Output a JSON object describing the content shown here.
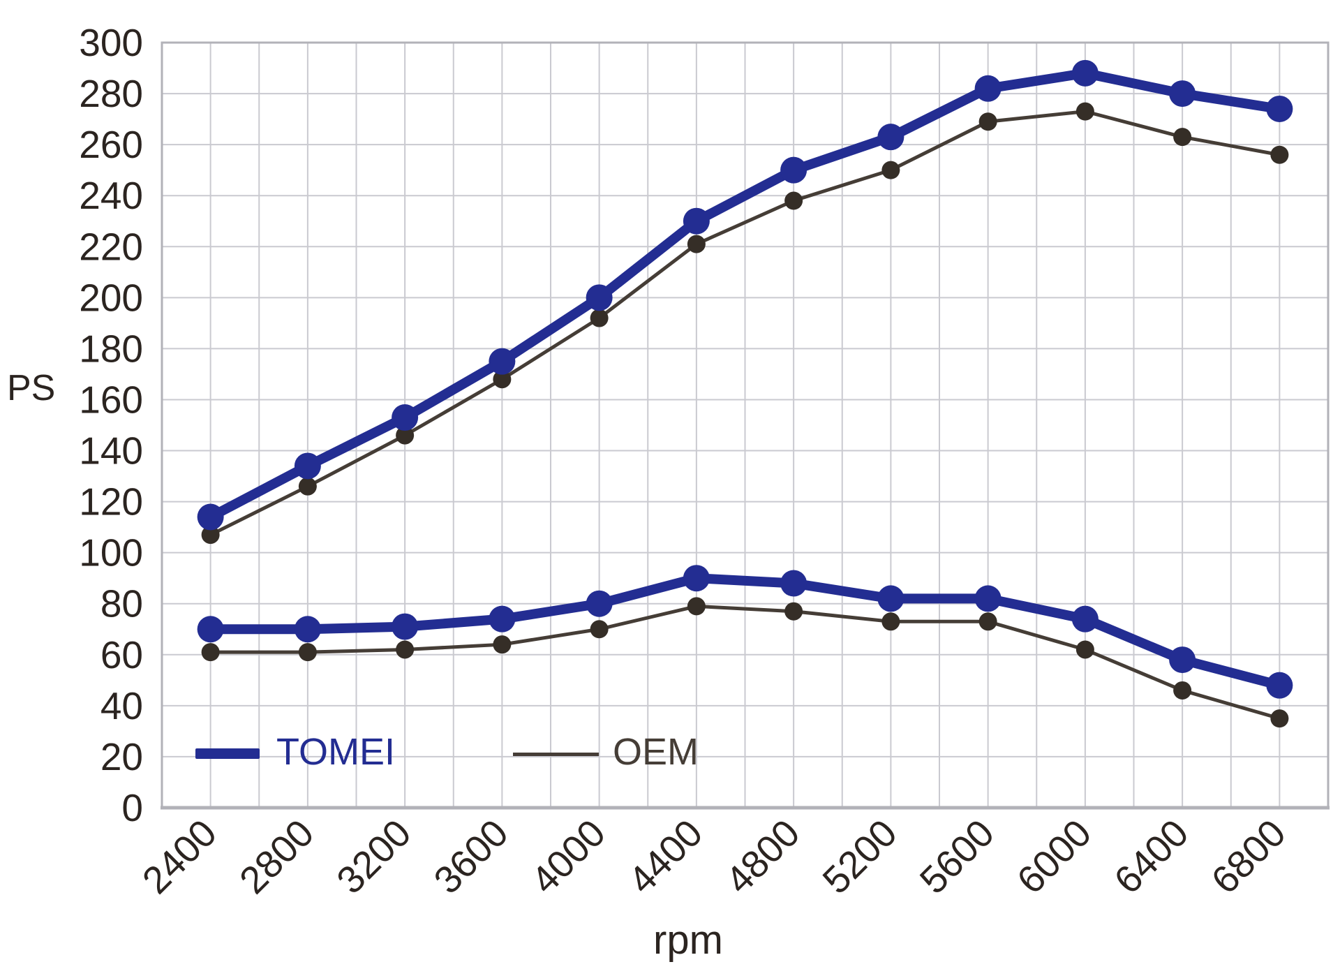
{
  "chart_data": {
    "type": "line",
    "title": "",
    "ylabel": "PS",
    "xlabel": "rpm",
    "x": [
      2400,
      2800,
      3200,
      3600,
      4000,
      4400,
      4800,
      5200,
      5600,
      6000,
      6400,
      6800
    ],
    "x_tick_labels": [
      "2400",
      "2800",
      "3200",
      "3600",
      "4000",
      "4400",
      "4800",
      "5200",
      "5600",
      "6000",
      "6400",
      "6800"
    ],
    "x_range": [
      2200,
      7000
    ],
    "x_grid_step": 200,
    "ylim": [
      0,
      300
    ],
    "y_ticks": [
      0,
      20,
      40,
      60,
      80,
      100,
      120,
      140,
      160,
      180,
      200,
      220,
      240,
      260,
      280,
      300
    ],
    "grid": true,
    "legend_position": "inside-bottom-left",
    "legend": [
      {
        "label": "TOMEI",
        "color": "#232d92"
      },
      {
        "label": "OEM",
        "color": "#453d36"
      }
    ],
    "series": [
      {
        "name": "OEM",
        "curve": "power",
        "color": "#453d36",
        "dot_color": "#352e27",
        "line_width": 5,
        "dot_radius": 13,
        "values": [
          107,
          126,
          146,
          168,
          192,
          221,
          238,
          250,
          269,
          273,
          263,
          256
        ]
      },
      {
        "name": "TOMEI",
        "curve": "power",
        "color": "#232d92",
        "dot_color": "#232d92",
        "line_width": 14,
        "dot_radius": 19,
        "values": [
          114,
          134,
          153,
          175,
          200,
          230,
          250,
          263,
          282,
          288,
          280,
          274
        ]
      },
      {
        "name": "OEM",
        "curve": "torque",
        "color": "#453d36",
        "dot_color": "#352e27",
        "line_width": 5,
        "dot_radius": 13,
        "values": [
          61,
          61,
          62,
          64,
          70,
          79,
          77,
          73,
          73,
          62,
          46,
          35
        ]
      },
      {
        "name": "TOMEI",
        "curve": "torque",
        "color": "#232d92",
        "dot_color": "#232d92",
        "line_width": 14,
        "dot_radius": 19,
        "values": [
          70,
          70,
          71,
          74,
          80,
          90,
          88,
          82,
          82,
          74,
          58,
          48
        ]
      }
    ],
    "colors": {
      "grid": "#cacad0",
      "axis": "#b2b2b8",
      "text": "#2b2420",
      "background": "#ffffff"
    }
  }
}
